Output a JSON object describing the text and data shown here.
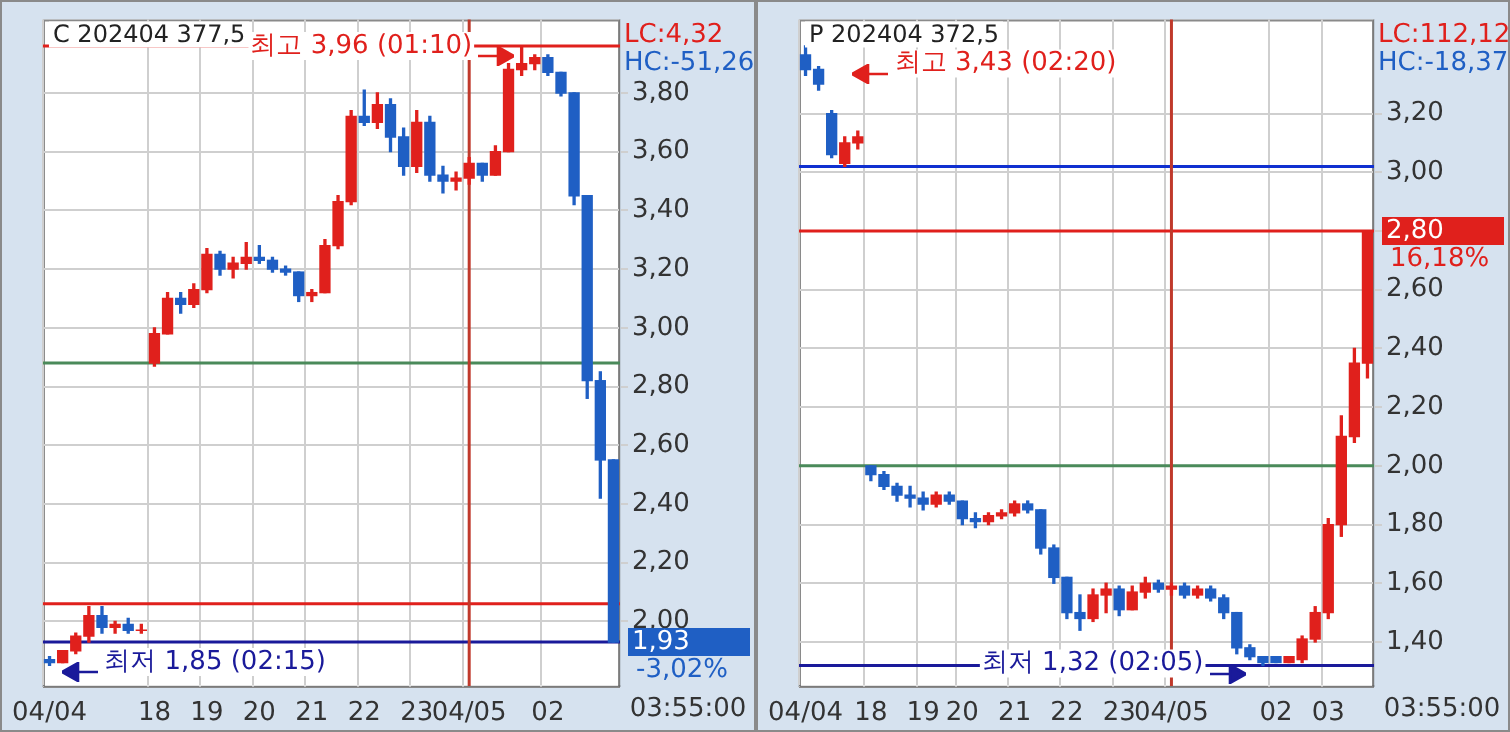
{
  "chart_data": [
    {
      "type": "candlestick",
      "title": "C 202404 377,5",
      "categories": [
        "04/04",
        null,
        null,
        null,
        null,
        null,
        null,
        null,
        "18",
        null,
        null,
        null,
        "19",
        null,
        null,
        null,
        "20",
        null,
        null,
        null,
        "21",
        null,
        null,
        null,
        "22",
        null,
        null,
        null,
        "23",
        null,
        null,
        null,
        "04/05",
        null,
        null,
        null,
        null,
        null,
        "02",
        null,
        null,
        null,
        null,
        null
      ],
      "ohlc": [
        [
          1.87,
          1.88,
          1.85,
          1.86
        ],
        [
          1.86,
          1.9,
          1.86,
          1.9
        ],
        [
          1.9,
          1.96,
          1.89,
          1.95
        ],
        [
          1.95,
          2.05,
          1.93,
          2.02
        ],
        [
          2.02,
          2.05,
          1.96,
          1.98
        ],
        [
          1.98,
          2.0,
          1.96,
          1.99
        ],
        [
          1.99,
          2.01,
          1.96,
          1.97
        ],
        [
          1.97,
          1.99,
          1.96,
          1.97
        ],
        [
          2.88,
          3.0,
          2.87,
          2.98
        ],
        [
          2.98,
          3.12,
          2.98,
          3.1
        ],
        [
          3.1,
          3.12,
          3.05,
          3.08
        ],
        [
          3.08,
          3.15,
          3.07,
          3.13
        ],
        [
          3.13,
          3.27,
          3.12,
          3.25
        ],
        [
          3.25,
          3.26,
          3.18,
          3.2
        ],
        [
          3.2,
          3.24,
          3.17,
          3.22
        ],
        [
          3.22,
          3.29,
          3.2,
          3.24
        ],
        [
          3.24,
          3.28,
          3.22,
          3.23
        ],
        [
          3.23,
          3.24,
          3.19,
          3.2
        ],
        [
          3.2,
          3.21,
          3.18,
          3.19
        ],
        [
          3.19,
          3.19,
          3.09,
          3.11
        ],
        [
          3.11,
          3.13,
          3.09,
          3.12
        ],
        [
          3.12,
          3.3,
          3.12,
          3.28
        ],
        [
          3.28,
          3.45,
          3.27,
          3.43
        ],
        [
          3.43,
          3.74,
          3.42,
          3.72
        ],
        [
          3.72,
          3.81,
          3.69,
          3.7
        ],
        [
          3.7,
          3.8,
          3.68,
          3.76
        ],
        [
          3.76,
          3.78,
          3.6,
          3.65
        ],
        [
          3.65,
          3.68,
          3.52,
          3.55
        ],
        [
          3.55,
          3.74,
          3.53,
          3.7
        ],
        [
          3.7,
          3.72,
          3.5,
          3.52
        ],
        [
          3.52,
          3.55,
          3.46,
          3.5
        ],
        [
          3.5,
          3.53,
          3.47,
          3.51
        ],
        [
          3.51,
          3.58,
          3.49,
          3.56
        ],
        [
          3.56,
          3.56,
          3.5,
          3.52
        ],
        [
          3.52,
          3.62,
          3.52,
          3.6
        ],
        [
          3.6,
          3.9,
          3.6,
          3.88
        ],
        [
          3.88,
          3.96,
          3.86,
          3.9
        ],
        [
          3.9,
          3.93,
          3.88,
          3.92
        ],
        [
          3.92,
          3.93,
          3.86,
          3.87
        ],
        [
          3.87,
          3.87,
          3.79,
          3.8
        ],
        [
          3.8,
          3.8,
          3.42,
          3.45
        ],
        [
          3.45,
          3.45,
          2.76,
          2.82
        ],
        [
          2.82,
          2.85,
          2.42,
          2.55
        ],
        [
          2.55,
          2.55,
          1.93,
          1.93
        ]
      ],
      "ylim": [
        1.78,
        4.05
      ],
      "yticks": [
        {
          "value": 2.0,
          "label": "2,00"
        },
        {
          "value": 2.2,
          "label": "2,20"
        },
        {
          "value": 2.4,
          "label": "2,40"
        },
        {
          "value": 2.6,
          "label": "2,60"
        },
        {
          "value": 2.8,
          "label": "2,80"
        },
        {
          "value": 3.0,
          "label": "3,00"
        },
        {
          "value": 3.2,
          "label": "3,20"
        },
        {
          "value": 3.4,
          "label": "3,40"
        },
        {
          "value": 3.6,
          "label": "3,60"
        },
        {
          "value": 3.8,
          "label": "3,80"
        }
      ],
      "grid": true,
      "ref_lines": [
        {
          "axis": "y",
          "value": 3.96,
          "color": "#e0201c"
        },
        {
          "axis": "y",
          "value": 2.88,
          "color": "#4a8a5a"
        },
        {
          "axis": "y",
          "value": 2.06,
          "color": "#e0201c"
        },
        {
          "axis": "y",
          "value": 1.93,
          "color": "#1a1a9a"
        },
        {
          "axis": "x",
          "value": "04/05",
          "color": "#c0392b"
        }
      ],
      "annotations": [
        "LC:4,32",
        "HC:-51,26",
        "최고 3,96 (01:10)",
        "최저 1,85 (02:15)",
        "1,93",
        "-3,02%",
        "03:55:00"
      ]
    },
    {
      "type": "candlestick",
      "title": "P 202404 372,5",
      "categories": [
        "04/04",
        null,
        null,
        null,
        null,
        "18",
        null,
        null,
        null,
        "19",
        null,
        null,
        "20",
        null,
        null,
        null,
        "21",
        null,
        null,
        null,
        "22",
        null,
        null,
        null,
        "23",
        null,
        null,
        null,
        "04/05",
        null,
        null,
        null,
        null,
        null,
        null,
        null,
        "02",
        null,
        null,
        null,
        "03",
        null,
        null,
        null
      ],
      "ohlc": [
        [
          3.4,
          3.43,
          3.33,
          3.35
        ],
        [
          3.35,
          3.36,
          3.28,
          3.3
        ],
        [
          3.2,
          3.21,
          3.05,
          3.06
        ],
        [
          3.03,
          3.12,
          3.02,
          3.1
        ],
        [
          3.1,
          3.14,
          3.08,
          3.12
        ],
        [
          2.0,
          2.0,
          1.95,
          1.97
        ],
        [
          1.97,
          1.98,
          1.92,
          1.93
        ],
        [
          1.93,
          1.94,
          1.88,
          1.9
        ],
        [
          1.9,
          1.93,
          1.86,
          1.89
        ],
        [
          1.89,
          1.91,
          1.85,
          1.87
        ],
        [
          1.87,
          1.91,
          1.86,
          1.9
        ],
        [
          1.9,
          1.91,
          1.87,
          1.88
        ],
        [
          1.88,
          1.88,
          1.8,
          1.82
        ],
        [
          1.82,
          1.84,
          1.79,
          1.81
        ],
        [
          1.81,
          1.84,
          1.8,
          1.83
        ],
        [
          1.83,
          1.85,
          1.82,
          1.84
        ],
        [
          1.84,
          1.88,
          1.83,
          1.87
        ],
        [
          1.87,
          1.88,
          1.84,
          1.85
        ],
        [
          1.85,
          1.85,
          1.7,
          1.72
        ],
        [
          1.72,
          1.73,
          1.6,
          1.62
        ],
        [
          1.62,
          1.62,
          1.48,
          1.5
        ],
        [
          1.5,
          1.56,
          1.44,
          1.48
        ],
        [
          1.48,
          1.58,
          1.47,
          1.56
        ],
        [
          1.56,
          1.6,
          1.5,
          1.58
        ],
        [
          1.58,
          1.59,
          1.49,
          1.51
        ],
        [
          1.51,
          1.59,
          1.51,
          1.57
        ],
        [
          1.57,
          1.62,
          1.55,
          1.6
        ],
        [
          1.6,
          1.61,
          1.57,
          1.58
        ],
        [
          1.58,
          1.6,
          1.56,
          1.59
        ],
        [
          1.59,
          1.6,
          1.55,
          1.56
        ],
        [
          1.56,
          1.59,
          1.55,
          1.58
        ],
        [
          1.58,
          1.59,
          1.54,
          1.55
        ],
        [
          1.55,
          1.56,
          1.48,
          1.5
        ],
        [
          1.5,
          1.5,
          1.36,
          1.38
        ],
        [
          1.38,
          1.39,
          1.34,
          1.35
        ],
        [
          1.35,
          1.35,
          1.32,
          1.33
        ],
        [
          1.35,
          1.35,
          1.33,
          1.33
        ],
        [
          1.33,
          1.35,
          1.33,
          1.35
        ],
        [
          1.34,
          1.42,
          1.33,
          1.41
        ],
        [
          1.41,
          1.52,
          1.4,
          1.5
        ],
        [
          1.5,
          1.82,
          1.48,
          1.8
        ],
        [
          1.8,
          2.17,
          1.76,
          2.1
        ],
        [
          2.1,
          2.4,
          2.08,
          2.35
        ],
        [
          2.35,
          2.8,
          2.3,
          2.8
        ]
      ],
      "ylim": [
        1.25,
        3.52
      ],
      "yticks": [
        {
          "value": 1.4,
          "label": "1,40"
        },
        {
          "value": 1.6,
          "label": "1,60"
        },
        {
          "value": 1.8,
          "label": "1,80"
        },
        {
          "value": 2.0,
          "label": "2,00"
        },
        {
          "value": 2.2,
          "label": "2,20"
        },
        {
          "value": 2.4,
          "label": "2,40"
        },
        {
          "value": 2.6,
          "label": "2,60"
        },
        {
          "value": 2.8,
          "label": null
        },
        {
          "value": 3.0,
          "label": "3,00"
        },
        {
          "value": 3.2,
          "label": "3,20"
        }
      ],
      "grid": true,
      "ref_lines": [
        {
          "axis": "y",
          "value": 3.02,
          "color": "#1030d0"
        },
        {
          "axis": "y",
          "value": 2.8,
          "color": "#e0201c"
        },
        {
          "axis": "y",
          "value": 2.0,
          "color": "#4a8a5a"
        },
        {
          "axis": "y",
          "value": 1.32,
          "color": "#1a1a9a"
        },
        {
          "axis": "x",
          "value": "04/05",
          "color": "#c0392b"
        }
      ],
      "annotations": [
        "LC:112,12",
        "HC:-18,37",
        "최고 3,43 (02:20)",
        "최저 1,32 (02:05)",
        "2,80",
        "16,18%",
        "03:55:00"
      ]
    }
  ]
}
